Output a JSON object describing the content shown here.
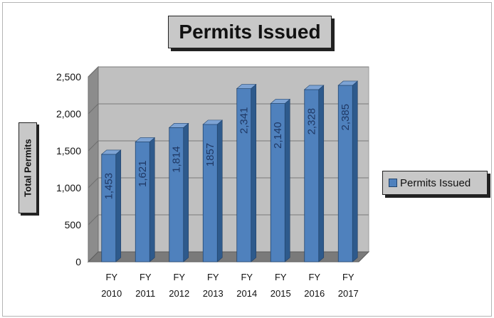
{
  "chart_data": {
    "type": "bar",
    "title": "Permits Issued",
    "ylabel": "Total Permits",
    "xlabel": "",
    "categories": [
      [
        "FY",
        "2010"
      ],
      [
        "FY",
        "2011"
      ],
      [
        "FY",
        "2012"
      ],
      [
        "FY",
        "2013"
      ],
      [
        "FY",
        "2014"
      ],
      [
        "FY",
        "2015"
      ],
      [
        "FY",
        "2016"
      ],
      [
        "FY",
        "2017"
      ]
    ],
    "series": [
      {
        "name": "Permits Issued",
        "values": [
          1453,
          1621,
          1814,
          1857,
          2341,
          2140,
          2328,
          2385
        ],
        "labels": [
          "1,453",
          "1,621",
          "1,814",
          "1857",
          "2,341",
          "2,140",
          "2,328",
          "2,385"
        ]
      }
    ],
    "ylim": [
      0,
      2500
    ],
    "yticks": [
      "0",
      "500",
      "1,000",
      "1,500",
      "2,000",
      "2,500"
    ],
    "yticks_values": [
      0,
      500,
      1000,
      1500,
      2000,
      2500
    ],
    "grid": true,
    "legend": "right",
    "style": "3d-columns",
    "colors": {
      "bar": "#4f81bd",
      "bar_top": "#7da3d4",
      "bar_side": "#2e5a8c",
      "wall": "#c0c0c0"
    }
  }
}
